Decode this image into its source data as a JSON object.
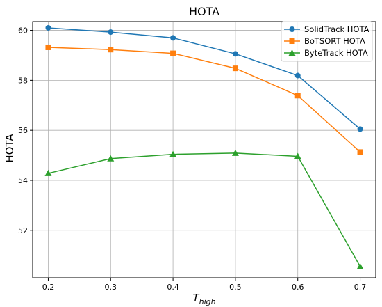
{
  "chart_data": {
    "type": "line",
    "title": "HOTA",
    "xlabel_main": "T",
    "xlabel_sub": "high",
    "ylabel": "HOTA",
    "x": [
      0.2,
      0.3,
      0.4,
      0.5,
      0.6,
      0.7
    ],
    "x_tick_labels": [
      "0.2",
      "0.3",
      "0.4",
      "0.5",
      "0.6",
      "0.7"
    ],
    "y_ticks": [
      52,
      54,
      56,
      58,
      60
    ],
    "y_tick_labels": [
      "52",
      "54",
      "56",
      "58",
      "60"
    ],
    "xlim": [
      0.175,
      0.725
    ],
    "ylim": [
      50.1,
      60.35
    ],
    "grid": true,
    "legend_position": "top-right",
    "series": [
      {
        "name": "SolidTrack HOTA",
        "color": "#1f77b4",
        "marker": "circle",
        "values": [
          60.1,
          59.93,
          59.7,
          59.06,
          58.19,
          56.05
        ]
      },
      {
        "name": "BoTSORT HOTA",
        "color": "#ff7f0e",
        "marker": "square",
        "values": [
          59.32,
          59.23,
          59.08,
          58.48,
          57.39,
          55.13
        ]
      },
      {
        "name": "ByteTrack HOTA",
        "color": "#2ca02c",
        "marker": "triangle",
        "values": [
          54.28,
          54.87,
          55.04,
          55.09,
          54.96,
          50.55
        ]
      }
    ]
  }
}
